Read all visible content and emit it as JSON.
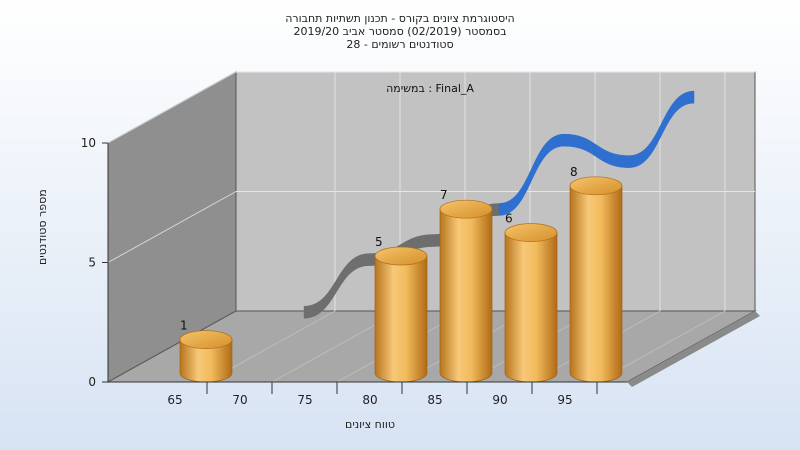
{
  "titles": {
    "line1": "היסטוגרמת ציונים בקורס - תכנון תשתיות תחבורה",
    "line2": "בסמסטר (02/2019) סמסטר אביב 2019/20",
    "line3": "סטודנטים רשומים - 28"
  },
  "chart_data": {
    "type": "bar",
    "subtype": "3d-cylinder-with-distribution-ribbon",
    "annotation": "במשימה : Final_A",
    "xlabel": "טווח ציונים",
    "ylabel": "מספר סטודנטים",
    "x_ticks": [
      "65",
      "70",
      "75",
      "80",
      "85",
      "90",
      "95"
    ],
    "y_ticks": [
      "0",
      "5",
      "10"
    ],
    "ylim": [
      0,
      10
    ],
    "bar_x": [
      65,
      80,
      85,
      90,
      95
    ],
    "values": [
      1,
      5,
      7,
      6,
      8
    ],
    "data_labels": [
      "1",
      "5",
      "7",
      "6",
      "8"
    ],
    "bar_color": "#E8A43C",
    "ribbon_x": [
      70,
      75,
      80,
      85,
      90,
      95,
      100
    ],
    "ribbon_values": [
      0.2,
      2.4,
      3.2,
      4.5,
      7.4,
      6.5,
      9.2
    ],
    "ribbon_colors": [
      "#6e6e6e",
      "#2f6fd0"
    ],
    "grid": true
  }
}
